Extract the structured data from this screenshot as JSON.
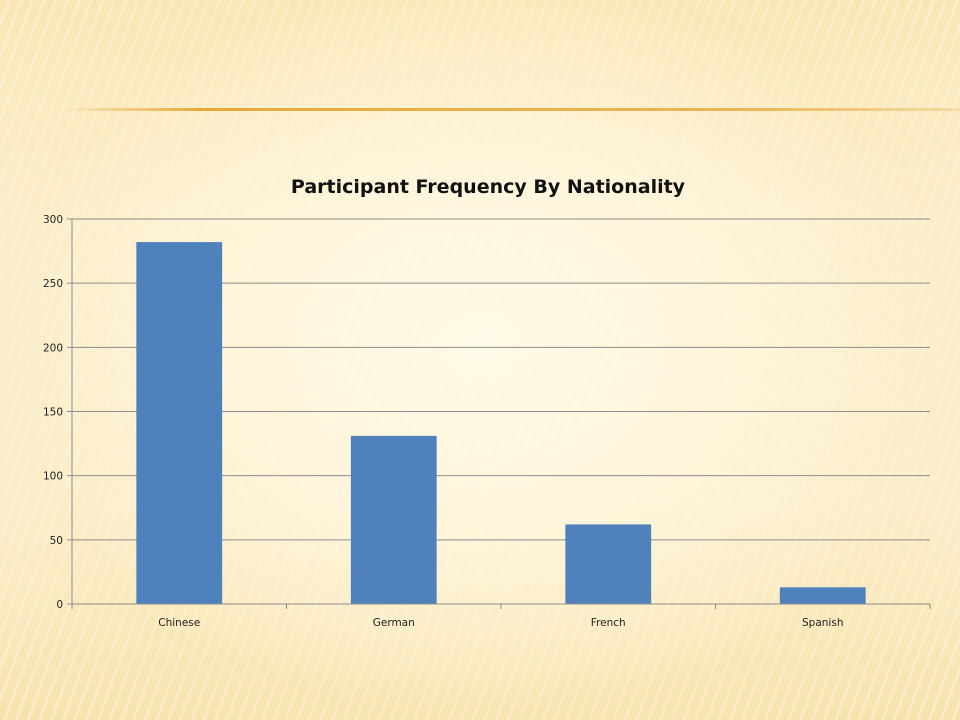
{
  "chart_data": {
    "type": "bar",
    "title": "Participant Frequency By Nationality",
    "categories": [
      "Chinese",
      "German",
      "French",
      "Spanish"
    ],
    "values": [
      282,
      131,
      62,
      13
    ],
    "ylim": [
      0,
      300
    ],
    "yticks": [
      0,
      50,
      100,
      150,
      200,
      250,
      300
    ],
    "ytick_labels": [
      "0",
      "50",
      "100",
      "150",
      "200",
      "250",
      "300"
    ],
    "xlabel": "",
    "ylabel": "",
    "grid": true,
    "legend": "none",
    "colors": {
      "bar": "#4f81bd",
      "grid": "#8c8c8c",
      "axis": "#8c8c8c"
    }
  }
}
